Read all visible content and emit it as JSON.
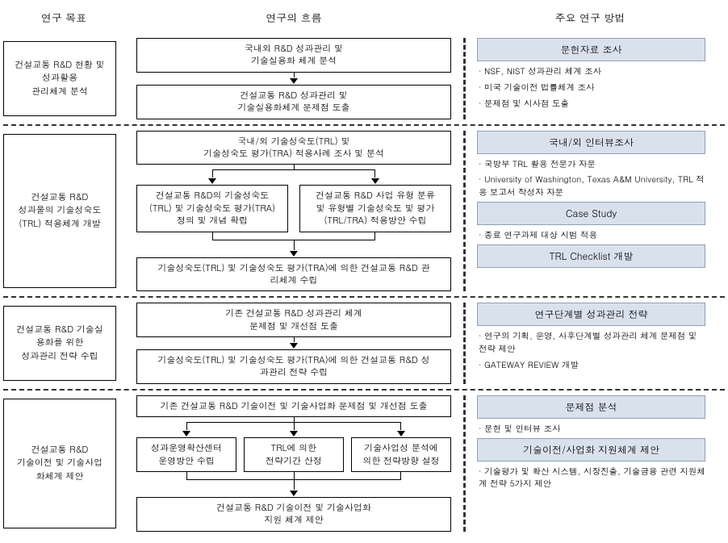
{
  "headers": {
    "left": "연구 목표",
    "mid": "연구의 흐름",
    "right": "주요 연구 방법"
  },
  "sections": [
    {
      "left": "건설교통 R&D 현황 및\n성과활용\n관리체계 분석",
      "mid": [
        {
          "type": "box",
          "text": "국내외 R&D 성과관리 및\n기술실용화 체계 분석"
        },
        {
          "type": "arrow"
        },
        {
          "type": "box",
          "text": "건설교통 R&D 성과관리 및\n기술실용화체계 문제점 도출"
        }
      ],
      "right": [
        {
          "type": "method",
          "text": "문헌자료 조사"
        },
        {
          "type": "item",
          "text": "NSF, NIST 성과관리 체계 조사"
        },
        {
          "type": "item",
          "text": "미국 기술이전 법률체계 조사"
        },
        {
          "type": "item",
          "text": "문제점 및 시사점 도출"
        }
      ]
    },
    {
      "left": "건설교통 R&D\n성과물의 기술성숙도\n(TRL) 적용체계 개발",
      "mid": [
        {
          "type": "box",
          "text": "국내/외 기술성숙도(TRL) 및\n기술성숙도 평가(TRA) 적용사례 조사 및 분석"
        },
        {
          "type": "split-down"
        },
        {
          "type": "split2",
          "left": "건설교통 R&D의  기술성숙도\n(TRL) 및 기술성숙도 평가(TRA)\n정의 및 개념 확립",
          "right": "건설교통 R&D 사업 유형 분류\n및 유형별 기술성숙도 및 평가\n(TRL/TRA) 적용방안 수립"
        },
        {
          "type": "merge-up"
        },
        {
          "type": "arrow"
        },
        {
          "type": "box",
          "text": "기술성숙도(TRL) 및 기술성숙도 평가(TRA)에 의한 건설교통 R&D 관\n리체계 수립"
        }
      ],
      "right": [
        {
          "type": "method",
          "text": "국내/외 인터뷰조사"
        },
        {
          "type": "item",
          "text": "국방부 TRL 활용 전문가 자문"
        },
        {
          "type": "item",
          "text": "University of Washington, Texas A&M University, TRL 적용 보고서 작성자 자문"
        },
        {
          "type": "method",
          "text": "Case Study"
        },
        {
          "type": "item",
          "text": "종료 연구과제 대상 시범 적용"
        },
        {
          "type": "method",
          "text": "TRL Checklist 개발"
        }
      ]
    },
    {
      "left": "건설교통 R&D 기술실\n용화를 위한\n성과관리 전략 수립",
      "mid": [
        {
          "type": "box",
          "text": "기존 건설교통 R&D 성과관리 체계\n문제점 및 개선점 도출"
        },
        {
          "type": "arrow"
        },
        {
          "type": "box",
          "text": "기술성숙도(TRL) 및 기술성숙도 평가(TRA)에 의한 건설교통 R&D 성\n과관리 전략 수립"
        }
      ],
      "right": [
        {
          "type": "method",
          "text": "연구단계별 성과관리 전략"
        },
        {
          "type": "item",
          "text": "연구의 기획, 운영, 사후단계별 성과관리 체계 문제점 및 전략 제안"
        },
        {
          "type": "item",
          "text": "GATEWAY REVIEW 개발"
        }
      ]
    },
    {
      "left": "건설교통 R&D\n기술이전 및 기술사업\n화체계 제안",
      "mid": [
        {
          "type": "box",
          "text": "기존 건설교통 R&D 기술이전 및 기술사업화 문제점 및 개선점 도출"
        },
        {
          "type": "split-down3"
        },
        {
          "type": "split3",
          "a": "성과운영확산센터\n운영방안 수립",
          "b": "TRL에 의한\n전략기간 산정",
          "c": "기술사업성 분석에\n의한 전략방향 설정"
        },
        {
          "type": "merge-up3"
        },
        {
          "type": "arrow"
        },
        {
          "type": "box",
          "text": "건설교통 R&D 기술이전 및 기술사업화\n지원 체계 제안"
        }
      ],
      "right": [
        {
          "type": "method",
          "text": "문제점 분석"
        },
        {
          "type": "item",
          "text": "문헌 및 인터뷰 조사"
        },
        {
          "type": "method",
          "text": "기술이전/사업화 지원체계 제안"
        },
        {
          "type": "item",
          "text": "기술평가 및 확산 시스템, 시장진출, 기술금융 관련 지원체계 전략 5가지 제안"
        }
      ]
    }
  ]
}
